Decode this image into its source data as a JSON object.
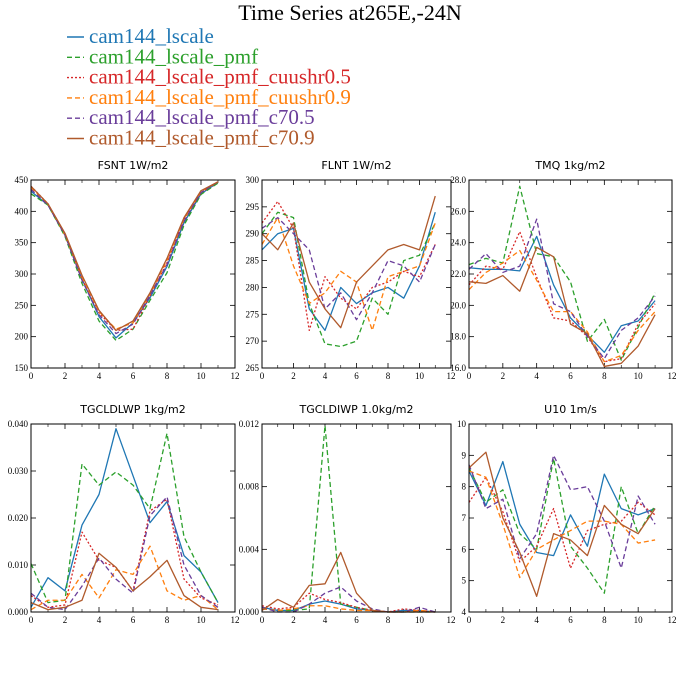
{
  "chart_data": {
    "title": "Time Series at265E,-24N",
    "series_styles": [
      {
        "name": "cam144_lscale",
        "color": "#1f77b4",
        "dash": "solid"
      },
      {
        "name": "cam144_lscale_pmf",
        "color": "#2ca02c",
        "dash": "dash"
      },
      {
        "name": "cam144_lscale_pmf_cuushr0.5",
        "color": "#d62728",
        "dash": "dot"
      },
      {
        "name": "cam144_lscale_pmf_cuushr0.9",
        "color": "#ff7f0e",
        "dash": "dash"
      },
      {
        "name": "cam144_lscale_pmf_c70.5",
        "color": "#6a3d9a",
        "dash": "dash"
      },
      {
        "name": "cam144_lscale_pmf_c70.9",
        "color": "#b05a2c",
        "dash": "solid"
      }
    ],
    "panels": [
      {
        "type": "line",
        "title": "FSNT   1W/m2",
        "x": [
          0,
          1,
          2,
          3,
          4,
          5,
          6,
          7,
          8,
          9,
          10,
          11
        ],
        "xlim": [
          0,
          12
        ],
        "xticks": [
          "0",
          "2",
          "4",
          "6",
          "8",
          "10",
          "12"
        ],
        "ylim": [
          150,
          450
        ],
        "yticks": [
          "150",
          "200",
          "250",
          "300",
          "350",
          "400",
          "450"
        ],
        "series": [
          {
            "name": "cam144_lscale",
            "values": [
              432,
              410,
              362,
              292,
              232,
              198,
              222,
              262,
              312,
              382,
              428,
              446
            ]
          },
          {
            "name": "cam144_lscale_pmf",
            "values": [
              428,
              410,
              360,
              285,
              225,
              194,
              212,
              258,
              302,
              378,
              427,
              445
            ]
          },
          {
            "name": "cam144_lscale_pmf_cuushr0.5",
            "values": [
              440,
              412,
              364,
              292,
              238,
              210,
              212,
              265,
              318,
              387,
              430,
              447
            ]
          },
          {
            "name": "cam144_lscale_pmf_cuushr0.9",
            "values": [
              438,
              411,
              362,
              295,
              240,
              212,
              222,
              268,
              322,
              388,
              432,
              447
            ]
          },
          {
            "name": "cam144_lscale_pmf_c70.5",
            "values": [
              435,
              410,
              362,
              290,
              235,
              205,
              220,
              266,
              315,
              384,
              430,
              447
            ]
          },
          {
            "name": "cam144_lscale_pmf_c70.9",
            "values": [
              440,
              412,
              365,
              298,
              242,
              210,
              225,
              270,
              325,
              390,
              433,
              447
            ]
          }
        ]
      },
      {
        "type": "line",
        "title": "FLNT   1W/m2",
        "x": [
          0,
          1,
          2,
          3,
          4,
          5,
          6,
          7,
          8,
          9,
          10,
          11
        ],
        "xlim": [
          0,
          12
        ],
        "xticks": [
          "0",
          "2",
          "4",
          "6",
          "8",
          "10",
          "12"
        ],
        "ylim": [
          265,
          300
        ],
        "yticks": [
          "265",
          "270",
          "275",
          "280",
          "285",
          "290",
          "295",
          "300"
        ],
        "series": [
          {
            "name": "cam144_lscale",
            "values": [
              287,
              290,
              291,
              276,
              272,
              280,
              277,
              279,
              280,
              278,
              284,
              294
            ]
          },
          {
            "name": "cam144_lscale_pmf",
            "values": [
              290,
              294,
              293,
              277,
              269.5,
              269,
              270,
              278,
              275,
              285,
              286,
              292
            ]
          },
          {
            "name": "cam144_lscale_pmf_cuushr0.5",
            "values": [
              292,
              296,
              291,
              272,
              282,
              278,
              276,
              280,
              281,
              283,
              282,
              288
            ]
          },
          {
            "name": "cam144_lscale_pmf_cuushr0.9",
            "values": [
              288,
              293,
              284,
              277,
              279,
              283,
              281,
              272,
              282,
              283,
              284,
              292
            ]
          },
          {
            "name": "cam144_lscale_pmf_c70.5",
            "values": [
              291,
              293,
              290,
              287,
              276,
              279,
              274,
              279,
              285,
              284,
              281,
              288
            ]
          },
          {
            "name": "cam144_lscale_pmf_c70.9",
            "values": [
              290,
              287,
              292,
              281,
              276,
              272.5,
              281,
              284,
              287,
              288,
              287,
              297
            ]
          }
        ]
      },
      {
        "type": "line",
        "title": "TMQ   1kg/m2",
        "x": [
          0,
          1,
          2,
          3,
          4,
          5,
          6,
          7,
          8,
          9,
          10,
          11
        ],
        "xlim": [
          0,
          12
        ],
        "xticks": [
          "0",
          "2",
          "4",
          "6",
          "8",
          "10",
          "12"
        ],
        "ylim": [
          16,
          28
        ],
        "yticks": [
          "16.0",
          "18.0",
          "20.0",
          "22.0",
          "24.0",
          "26.0",
          "28.0"
        ],
        "series": [
          {
            "name": "cam144_lscale",
            "values": [
              22.4,
              22.3,
              22.3,
              22.2,
              24.4,
              21.3,
              19.2,
              18.1,
              17.0,
              18.7,
              19.0,
              20.3
            ]
          },
          {
            "name": "cam144_lscale_pmf",
            "values": [
              22.6,
              23.0,
              22.7,
              27.6,
              23.3,
              23.1,
              21.5,
              17.7,
              19.1,
              16.5,
              18.6,
              20.8
            ]
          },
          {
            "name": "cam144_lscale_pmf_cuushr0.5",
            "values": [
              21.3,
              22.5,
              22.3,
              24.7,
              21.8,
              19.2,
              19.0,
              18.0,
              16.4,
              16.6,
              18.8,
              20.1
            ]
          },
          {
            "name": "cam144_lscale_pmf_cuushr0.9",
            "values": [
              21.0,
              22.1,
              22.7,
              23.5,
              21.6,
              19.6,
              19.6,
              18.3,
              16.4,
              16.8,
              18.4,
              19.6
            ]
          },
          {
            "name": "cam144_lscale_pmf_c70.5",
            "values": [
              22.3,
              23.3,
              22.1,
              22.5,
              25.5,
              20.1,
              19.6,
              18.0,
              16.6,
              18.4,
              19.2,
              20.6
            ]
          },
          {
            "name": "cam144_lscale_pmf_c70.9",
            "values": [
              21.5,
              21.4,
              21.9,
              20.9,
              23.7,
              23.1,
              18.8,
              18.2,
              16.1,
              16.3,
              17.4,
              19.4
            ]
          }
        ]
      },
      {
        "type": "line",
        "title": "TGCLDLWP   1kg/m2",
        "x": [
          0,
          1,
          2,
          3,
          4,
          5,
          6,
          7,
          8,
          9,
          10,
          11
        ],
        "xlim": [
          0,
          12
        ],
        "xticks": [
          "0",
          "2",
          "4",
          "6",
          "8",
          "10",
          "12"
        ],
        "ylim": [
          0,
          0.04
        ],
        "yticks": [
          "0.000",
          "0.010",
          "0.020",
          "0.030",
          "0.040"
        ],
        "series": [
          {
            "name": "cam144_lscale",
            "values": [
              0.001,
              0.0073,
              0.0045,
              0.0185,
              0.025,
              0.039,
              0.029,
              0.019,
              0.0235,
              0.012,
              0.0085,
              0.002
            ]
          },
          {
            "name": "cam144_lscale_pmf",
            "values": [
              0.0103,
              0.002,
              0.0025,
              0.0315,
              0.027,
              0.0298,
              0.027,
              0.022,
              0.038,
              0.016,
              0.0085,
              0.002
            ]
          },
          {
            "name": "cam144_lscale_pmf_cuushr0.5",
            "values": [
              0.0035,
              0.001,
              0.0015,
              0.017,
              0.011,
              0.0095,
              0.0045,
              0.0215,
              0.024,
              0.007,
              0.003,
              0.0015
            ]
          },
          {
            "name": "cam144_lscale_pmf_cuushr0.9",
            "values": [
              0.0005,
              0.0025,
              0.0025,
              0.008,
              0.003,
              0.009,
              0.008,
              0.014,
              0.0045,
              0.0025,
              0.0035,
              0.0005
            ]
          },
          {
            "name": "cam144_lscale_pmf_c70.5",
            "values": [
              0.004,
              0.001,
              0.0005,
              0.0055,
              0.0115,
              0.007,
              0.004,
              0.0205,
              0.0245,
              0.01,
              0.0035,
              0.001
            ]
          },
          {
            "name": "cam144_lscale_pmf_c70.9",
            "values": [
              0.002,
              0.0005,
              0.001,
              0.0025,
              0.0125,
              0.0095,
              0.0045,
              0.0075,
              0.011,
              0.0035,
              0.001,
              0.0005
            ]
          }
        ]
      },
      {
        "type": "line",
        "title": "TGCLDIWP   1.0kg/m2",
        "x": [
          0,
          1,
          2,
          3,
          4,
          5,
          6,
          7,
          8,
          9,
          10,
          11
        ],
        "xlim": [
          0,
          12
        ],
        "xticks": [
          "0",
          "2",
          "4",
          "6",
          "8",
          "10",
          "12"
        ],
        "ylim": [
          0,
          0.012
        ],
        "yticks": [
          "0.000",
          "0.004",
          "0.008",
          "0.012"
        ],
        "series": [
          {
            "name": "cam144_lscale",
            "values": [
              0.0003,
              0.0001,
              0.0001,
              0.0005,
              0.0007,
              0.0005,
              0.0002,
              0.0001,
              0.0,
              0.0001,
              0.0001,
              0.0
            ]
          },
          {
            "name": "cam144_lscale_pmf",
            "values": [
              0.0002,
              0.0001,
              0.0001,
              0.0002,
              0.0119,
              0.0005,
              0.0003,
              0.0001,
              0.0,
              0.0,
              0.0,
              0.0
            ]
          },
          {
            "name": "cam144_lscale_pmf_cuushr0.5",
            "values": [
              0.0004,
              0.0002,
              0.0003,
              0.0012,
              0.0008,
              0.0006,
              0.0003,
              0.0001,
              0.0,
              0.0002,
              0.0001,
              0.0
            ]
          },
          {
            "name": "cam144_lscale_pmf_cuushr0.9",
            "values": [
              0.0002,
              0.0001,
              0.0002,
              0.0004,
              0.0004,
              0.0002,
              0.0001,
              0.0001,
              0.0,
              0.0,
              0.0001,
              0.0
            ]
          },
          {
            "name": "cam144_lscale_pmf_c70.5",
            "values": [
              0.0003,
              0.0,
              0.0,
              0.0005,
              0.0012,
              0.0016,
              0.0007,
              0.0002,
              0.0,
              0.0,
              0.0003,
              0.0
            ]
          },
          {
            "name": "cam144_lscale_pmf_c70.9",
            "values": [
              0.0001,
              0.0008,
              0.0003,
              0.0017,
              0.0018,
              0.0038,
              0.0012,
              0.0001,
              0.0,
              0.0,
              0.0,
              0.0
            ]
          }
        ]
      },
      {
        "type": "line",
        "title": "U10   1m/s",
        "x": [
          0,
          1,
          2,
          3,
          4,
          5,
          6,
          7,
          8,
          9,
          10,
          11
        ],
        "xlim": [
          0,
          12
        ],
        "xticks": [
          "0",
          "2",
          "4",
          "6",
          "8",
          "10",
          "12"
        ],
        "ylim": [
          4,
          10
        ],
        "yticks": [
          "4",
          "5",
          "6",
          "7",
          "8",
          "9",
          "10"
        ],
        "series": [
          {
            "name": "cam144_lscale",
            "values": [
              8.5,
              7.4,
              8.8,
              6.8,
              5.9,
              5.8,
              7.1,
              6.1,
              8.4,
              7.3,
              7.1,
              7.3
            ]
          },
          {
            "name": "cam144_lscale_pmf",
            "values": [
              8.6,
              7.5,
              7.9,
              6.5,
              6.0,
              8.9,
              6.1,
              5.4,
              4.6,
              8.0,
              6.5,
              7.4
            ]
          },
          {
            "name": "cam144_lscale_pmf_cuushr0.5",
            "values": [
              7.5,
              8.3,
              7.2,
              5.6,
              6.1,
              7.3,
              5.4,
              6.6,
              6.8,
              6.9,
              7.5,
              7.1
            ]
          },
          {
            "name": "cam144_lscale_pmf_cuushr0.9",
            "values": [
              8.5,
              8.3,
              6.8,
              5.1,
              6.0,
              6.3,
              6.6,
              6.9,
              6.9,
              6.8,
              6.2,
              6.3
            ]
          },
          {
            "name": "cam144_lscale_pmf_c70.5",
            "values": [
              8.7,
              7.3,
              7.6,
              5.7,
              6.5,
              9.0,
              7.9,
              8.0,
              6.9,
              5.4,
              7.7,
              6.8
            ]
          },
          {
            "name": "cam144_lscale_pmf_c70.9",
            "values": [
              8.6,
              9.1,
              7.0,
              5.9,
              4.5,
              6.5,
              6.3,
              5.8,
              7.4,
              6.8,
              6.5,
              7.3
            ]
          }
        ]
      }
    ]
  }
}
